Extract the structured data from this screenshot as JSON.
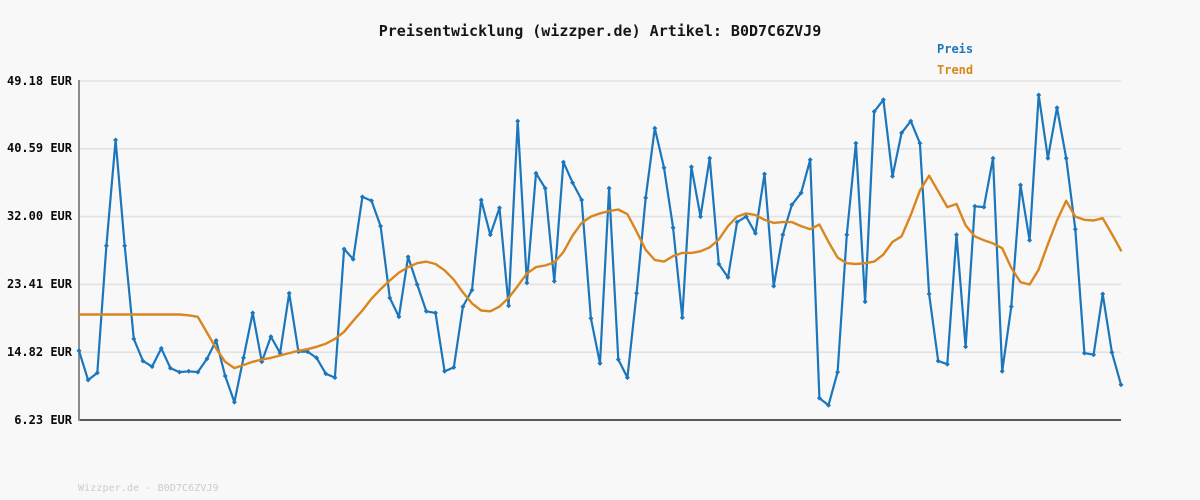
{
  "title": "Preisentwicklung (wizzper.de) Artikel: B0D7C6ZVJ9",
  "legend": [
    {
      "label": "Preis",
      "color": "#1b76bc"
    },
    {
      "label": "Trend",
      "color": "#d9861f"
    }
  ],
  "footer": "Wizzper.de - B0D7C6ZVJ9",
  "y_axis": {
    "tick_labels": [
      "49.18 EUR",
      "40.59 EUR",
      "32.00 EUR",
      "23.41 EUR",
      "14.82 EUR",
      "6.23 EUR"
    ],
    "tick_values": [
      49.18,
      40.59,
      32.0,
      23.41,
      14.82,
      6.23
    ],
    "unit": "EUR"
  },
  "colors": {
    "background": "#f8f8f8",
    "grid": "#e3e3e3",
    "y_axis_line": "#8c8c8c",
    "x_axis_line": "#5a5a5a",
    "title_text": "#161616",
    "tick_text": "#0a0a0a",
    "watermark_text": "#cbcbcb"
  },
  "chart_data": {
    "type": "line",
    "title": "Preisentwicklung (wizzper.de) Artikel: B0D7C6ZVJ9",
    "ylabel": "EUR",
    "ylim": [
      6.23,
      49.18
    ],
    "y_ticks": [
      49.18,
      40.59,
      32.0,
      23.41,
      14.82,
      6.23
    ],
    "grid": "horizontal-only",
    "legend_position": "top-right",
    "series": [
      {
        "name": "Preis",
        "color": "#1b76bc",
        "markers": true,
        "values": [
          15.0,
          11.3,
          12.2,
          28.3,
          41.7,
          28.3,
          16.5,
          13.7,
          13.0,
          15.3,
          12.8,
          12.3,
          12.4,
          12.3,
          14.0,
          16.3,
          11.8,
          8.5,
          14.1,
          19.8,
          13.6,
          16.8,
          14.7,
          22.3,
          14.9,
          14.9,
          14.1,
          12.1,
          11.6,
          27.9,
          26.6,
          34.5,
          34.0,
          30.8,
          21.7,
          19.3,
          26.9,
          23.4,
          20.0,
          19.8,
          12.4,
          12.9,
          20.6,
          22.7,
          34.1,
          29.7,
          33.1,
          20.7,
          44.1,
          23.6,
          37.5,
          35.6,
          23.8,
          38.9,
          36.3,
          34.1,
          19.1,
          13.4,
          35.6,
          13.9,
          11.6,
          22.3,
          34.4,
          43.2,
          38.2,
          30.6,
          19.2,
          38.3,
          32.0,
          39.4,
          26.0,
          24.3,
          31.3,
          32.0,
          29.9,
          37.4,
          23.2,
          29.7,
          33.5,
          35.0,
          39.2,
          9.0,
          8.1,
          12.3,
          29.7,
          41.3,
          21.2,
          45.3,
          46.8,
          37.1,
          42.6,
          44.1,
          41.3,
          22.2,
          13.7,
          13.3,
          29.7,
          15.5,
          33.3,
          33.2,
          39.4,
          12.4,
          20.6,
          36.0,
          29.0,
          47.4,
          39.4,
          45.8,
          39.4,
          30.4,
          14.7,
          14.5,
          22.2,
          14.8,
          10.7
        ]
      },
      {
        "name": "Trend",
        "color": "#d9861f",
        "markers": false,
        "values": [
          19.6,
          19.6,
          19.6,
          19.6,
          19.6,
          19.6,
          19.6,
          19.6,
          19.6,
          19.6,
          19.6,
          19.6,
          19.5,
          19.3,
          17.3,
          15.3,
          13.6,
          12.8,
          13.2,
          13.6,
          13.9,
          14.1,
          14.4,
          14.7,
          15.0,
          15.2,
          15.5,
          15.9,
          16.5,
          17.4,
          18.8,
          20.1,
          21.6,
          22.8,
          23.9,
          24.9,
          25.6,
          26.1,
          26.3,
          26.0,
          25.2,
          24.0,
          22.4,
          21.0,
          20.1,
          20.0,
          20.6,
          21.7,
          23.2,
          24.8,
          25.6,
          25.8,
          26.2,
          27.5,
          29.6,
          31.2,
          32.0,
          32.4,
          32.7,
          32.9,
          32.3,
          30.1,
          27.8,
          26.5,
          26.3,
          27.0,
          27.4,
          27.4,
          27.6,
          28.1,
          29.1,
          30.8,
          32.0,
          32.4,
          32.2,
          31.6,
          31.2,
          31.3,
          31.3,
          30.8,
          30.4,
          31.0,
          28.8,
          26.8,
          26.1,
          26.0,
          26.1,
          26.3,
          27.2,
          28.8,
          29.5,
          32.2,
          35.3,
          37.2,
          35.2,
          33.2,
          33.6,
          30.9,
          29.5,
          29.0,
          28.6,
          28.0,
          25.5,
          23.7,
          23.4,
          25.3,
          28.5,
          31.5,
          34.0,
          32.0,
          31.6,
          31.5,
          31.8,
          29.8,
          27.7
        ]
      }
    ]
  }
}
